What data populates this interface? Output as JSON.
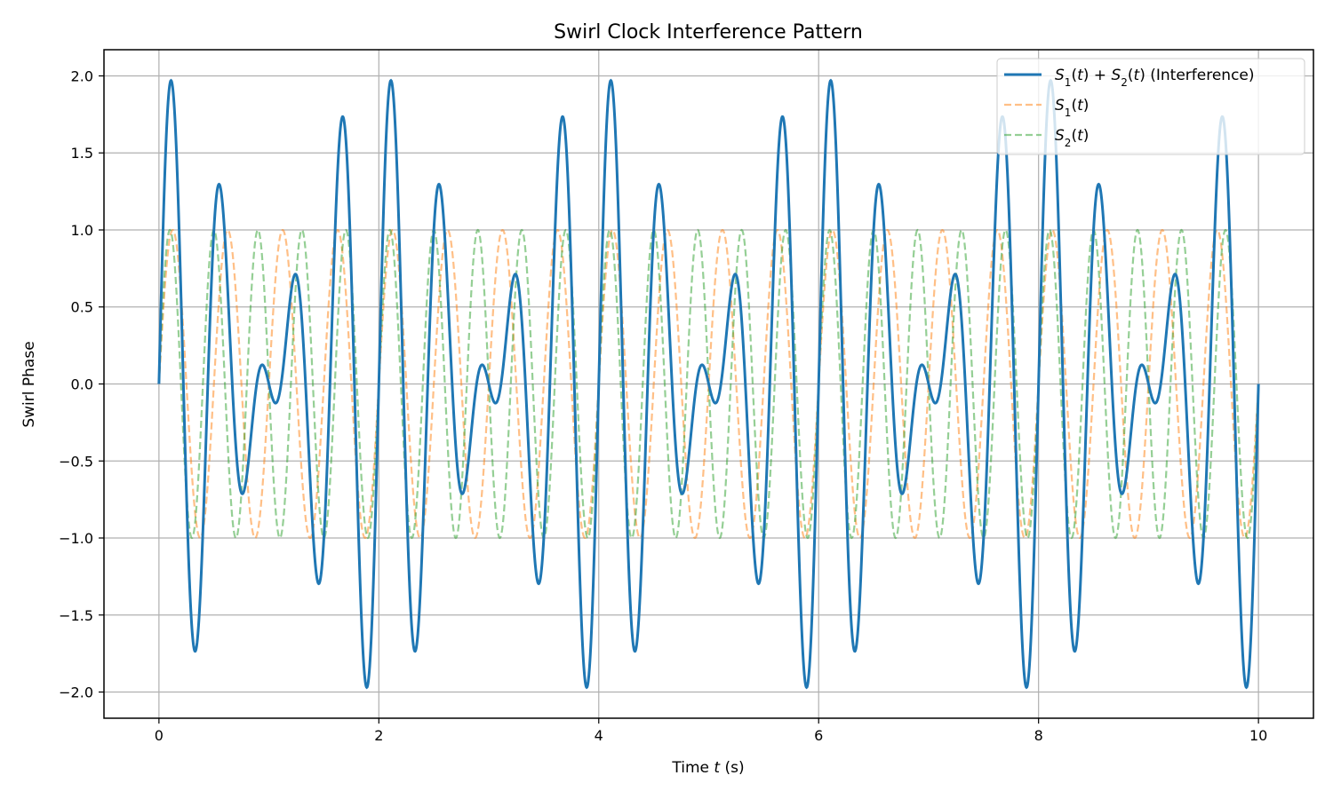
{
  "chart_data": {
    "type": "line",
    "title": "Swirl Clock Interference Pattern",
    "xlabel": "Time t (s)",
    "ylabel": "Swirl Phase",
    "xlim": [
      -0.5,
      10.5
    ],
    "ylim": [
      -2.17,
      2.17
    ],
    "x_ticks": [
      0,
      2,
      4,
      6,
      8,
      10
    ],
    "x_tick_labels": [
      "0",
      "2",
      "4",
      "6",
      "8",
      "10"
    ],
    "y_ticks": [
      2.0,
      1.5,
      1.0,
      0.5,
      0.0,
      -0.5,
      -1.0,
      -1.5,
      -2.0
    ],
    "y_tick_labels": [
      "2.0",
      "1.5",
      "1.0",
      "0.5",
      "0.0",
      "−0.5",
      "−1.0",
      "−1.5",
      "−2.0"
    ],
    "grid": true,
    "legend_position": "top-right",
    "series": [
      {
        "name": "S1(t) + S2(t) (Interference)",
        "style": "solid",
        "color": "#1f77b4",
        "formula": "sin(2*pi*2*t) + sin(2*pi*2.5*t)",
        "x_range": [
          0,
          10
        ]
      },
      {
        "name": "S1(t)",
        "style": "dashed",
        "color": "#ff7f0e",
        "formula": "sin(2*pi*2*t)",
        "x_range": [
          0,
          10
        ]
      },
      {
        "name": "S2(t)",
        "style": "dashed",
        "color": "#2ca02c",
        "formula": "sin(2*pi*2.5*t)",
        "x_range": [
          0,
          10
        ]
      }
    ]
  }
}
